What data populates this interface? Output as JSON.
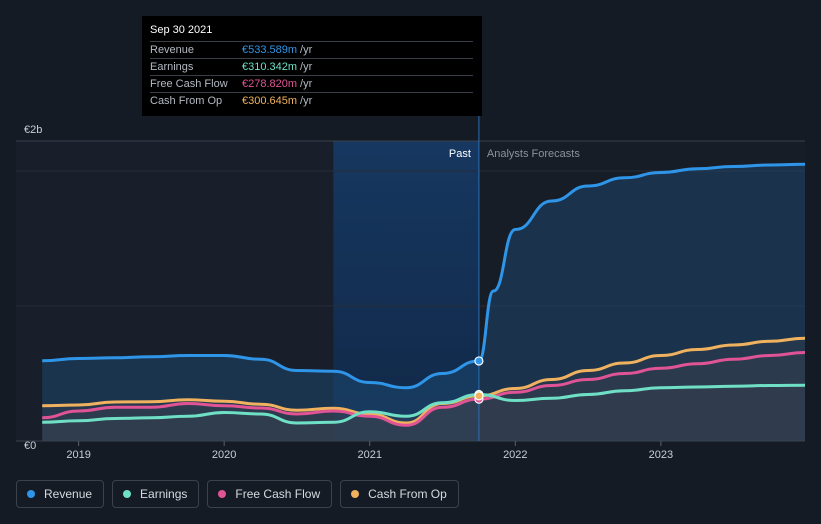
{
  "tooltip": {
    "date": "Sep 30 2021",
    "rows": [
      {
        "label": "Revenue",
        "value": "€533.589m",
        "unit": "/yr",
        "color": "#2f95e8"
      },
      {
        "label": "Earnings",
        "value": "€310.342m",
        "unit": "/yr",
        "color": "#6fe0c6"
      },
      {
        "label": "Free Cash Flow",
        "value": "€278.820m",
        "unit": "/yr",
        "color": "#e05496"
      },
      {
        "label": "Cash From Op",
        "value": "€300.645m",
        "unit": "/yr",
        "color": "#f0b25f"
      }
    ]
  },
  "legend": [
    {
      "label": "Revenue",
      "color": "#2f95e8"
    },
    {
      "label": "Earnings",
      "color": "#6fe0c6"
    },
    {
      "label": "Free Cash Flow",
      "color": "#e05496"
    },
    {
      "label": "Cash From Op",
      "color": "#f0b25f"
    }
  ],
  "chart_data": {
    "type": "line",
    "title": "",
    "xlabel": "",
    "ylabel": "",
    "ylim": [
      0,
      2000
    ],
    "y_unit": "€m",
    "y_ticks": [
      {
        "value": 0,
        "label": "€0"
      },
      {
        "value": 2000,
        "label": "€2b"
      }
    ],
    "x_ticks": [
      {
        "value": 2019.0,
        "label": "2019"
      },
      {
        "value": 2020.0,
        "label": "2020"
      },
      {
        "value": 2021.0,
        "label": "2021"
      },
      {
        "value": 2022.0,
        "label": "2022"
      },
      {
        "value": 2023.0,
        "label": "2023"
      }
    ],
    "xlim": [
      2018.57,
      2023.99
    ],
    "divider": 2021.75,
    "past_label": "Past",
    "forecast_label": "Analysts Forecasts",
    "highlight_start": 2020.75,
    "series": [
      {
        "name": "Revenue",
        "color": "#2f95e8",
        "fill": true,
        "points": [
          [
            2018.75,
            535
          ],
          [
            2019.0,
            550
          ],
          [
            2019.25,
            555
          ],
          [
            2019.5,
            562
          ],
          [
            2019.75,
            570
          ],
          [
            2020.0,
            570
          ],
          [
            2020.25,
            545
          ],
          [
            2020.5,
            470
          ],
          [
            2020.75,
            465
          ],
          [
            2021.0,
            390
          ],
          [
            2021.25,
            355
          ],
          [
            2021.5,
            450
          ],
          [
            2021.75,
            533.589
          ],
          [
            2021.85,
            1000
          ],
          [
            2022.0,
            1410
          ],
          [
            2022.25,
            1600
          ],
          [
            2022.5,
            1700
          ],
          [
            2022.75,
            1755
          ],
          [
            2023.0,
            1790
          ],
          [
            2023.25,
            1815
          ],
          [
            2023.5,
            1830
          ],
          [
            2023.75,
            1840
          ],
          [
            2023.99,
            1845
          ]
        ]
      },
      {
        "name": "Earnings",
        "color": "#6fe0c6",
        "fill": false,
        "points": [
          [
            2018.75,
            125
          ],
          [
            2019.0,
            135
          ],
          [
            2019.25,
            150
          ],
          [
            2019.5,
            155
          ],
          [
            2019.75,
            165
          ],
          [
            2020.0,
            190
          ],
          [
            2020.25,
            180
          ],
          [
            2020.5,
            120
          ],
          [
            2020.75,
            125
          ],
          [
            2021.0,
            195
          ],
          [
            2021.25,
            165
          ],
          [
            2021.5,
            255
          ],
          [
            2021.75,
            310.342
          ],
          [
            2022.0,
            270
          ],
          [
            2022.25,
            285
          ],
          [
            2022.5,
            310
          ],
          [
            2022.75,
            335
          ],
          [
            2023.0,
            355
          ],
          [
            2023.25,
            360
          ],
          [
            2023.5,
            365
          ],
          [
            2023.75,
            370
          ],
          [
            2023.99,
            372
          ]
        ]
      },
      {
        "name": "Free Cash Flow",
        "color": "#e05496",
        "fill": false,
        "points": [
          [
            2018.75,
            155
          ],
          [
            2019.0,
            200
          ],
          [
            2019.25,
            225
          ],
          [
            2019.5,
            225
          ],
          [
            2019.75,
            250
          ],
          [
            2020.0,
            235
          ],
          [
            2020.25,
            220
          ],
          [
            2020.5,
            180
          ],
          [
            2020.75,
            200
          ],
          [
            2021.0,
            165
          ],
          [
            2021.25,
            105
          ],
          [
            2021.5,
            225
          ],
          [
            2021.75,
            278.82
          ],
          [
            2022.0,
            325
          ],
          [
            2022.25,
            370
          ],
          [
            2022.5,
            410
          ],
          [
            2022.75,
            450
          ],
          [
            2023.0,
            485
          ],
          [
            2023.25,
            515
          ],
          [
            2023.5,
            545
          ],
          [
            2023.75,
            570
          ],
          [
            2023.99,
            590
          ]
        ]
      },
      {
        "name": "Cash From Op",
        "color": "#f0b25f",
        "fill": false,
        "points": [
          [
            2018.75,
            235
          ],
          [
            2019.0,
            240
          ],
          [
            2019.25,
            260
          ],
          [
            2019.5,
            262
          ],
          [
            2019.75,
            275
          ],
          [
            2020.0,
            265
          ],
          [
            2020.25,
            245
          ],
          [
            2020.5,
            205
          ],
          [
            2020.75,
            218
          ],
          [
            2021.0,
            180
          ],
          [
            2021.25,
            120
          ],
          [
            2021.5,
            250
          ],
          [
            2021.75,
            300.645
          ],
          [
            2022.0,
            350
          ],
          [
            2022.25,
            410
          ],
          [
            2022.5,
            470
          ],
          [
            2022.75,
            520
          ],
          [
            2023.0,
            570
          ],
          [
            2023.25,
            610
          ],
          [
            2023.5,
            640
          ],
          [
            2023.75,
            665
          ],
          [
            2023.99,
            685
          ]
        ]
      }
    ]
  }
}
